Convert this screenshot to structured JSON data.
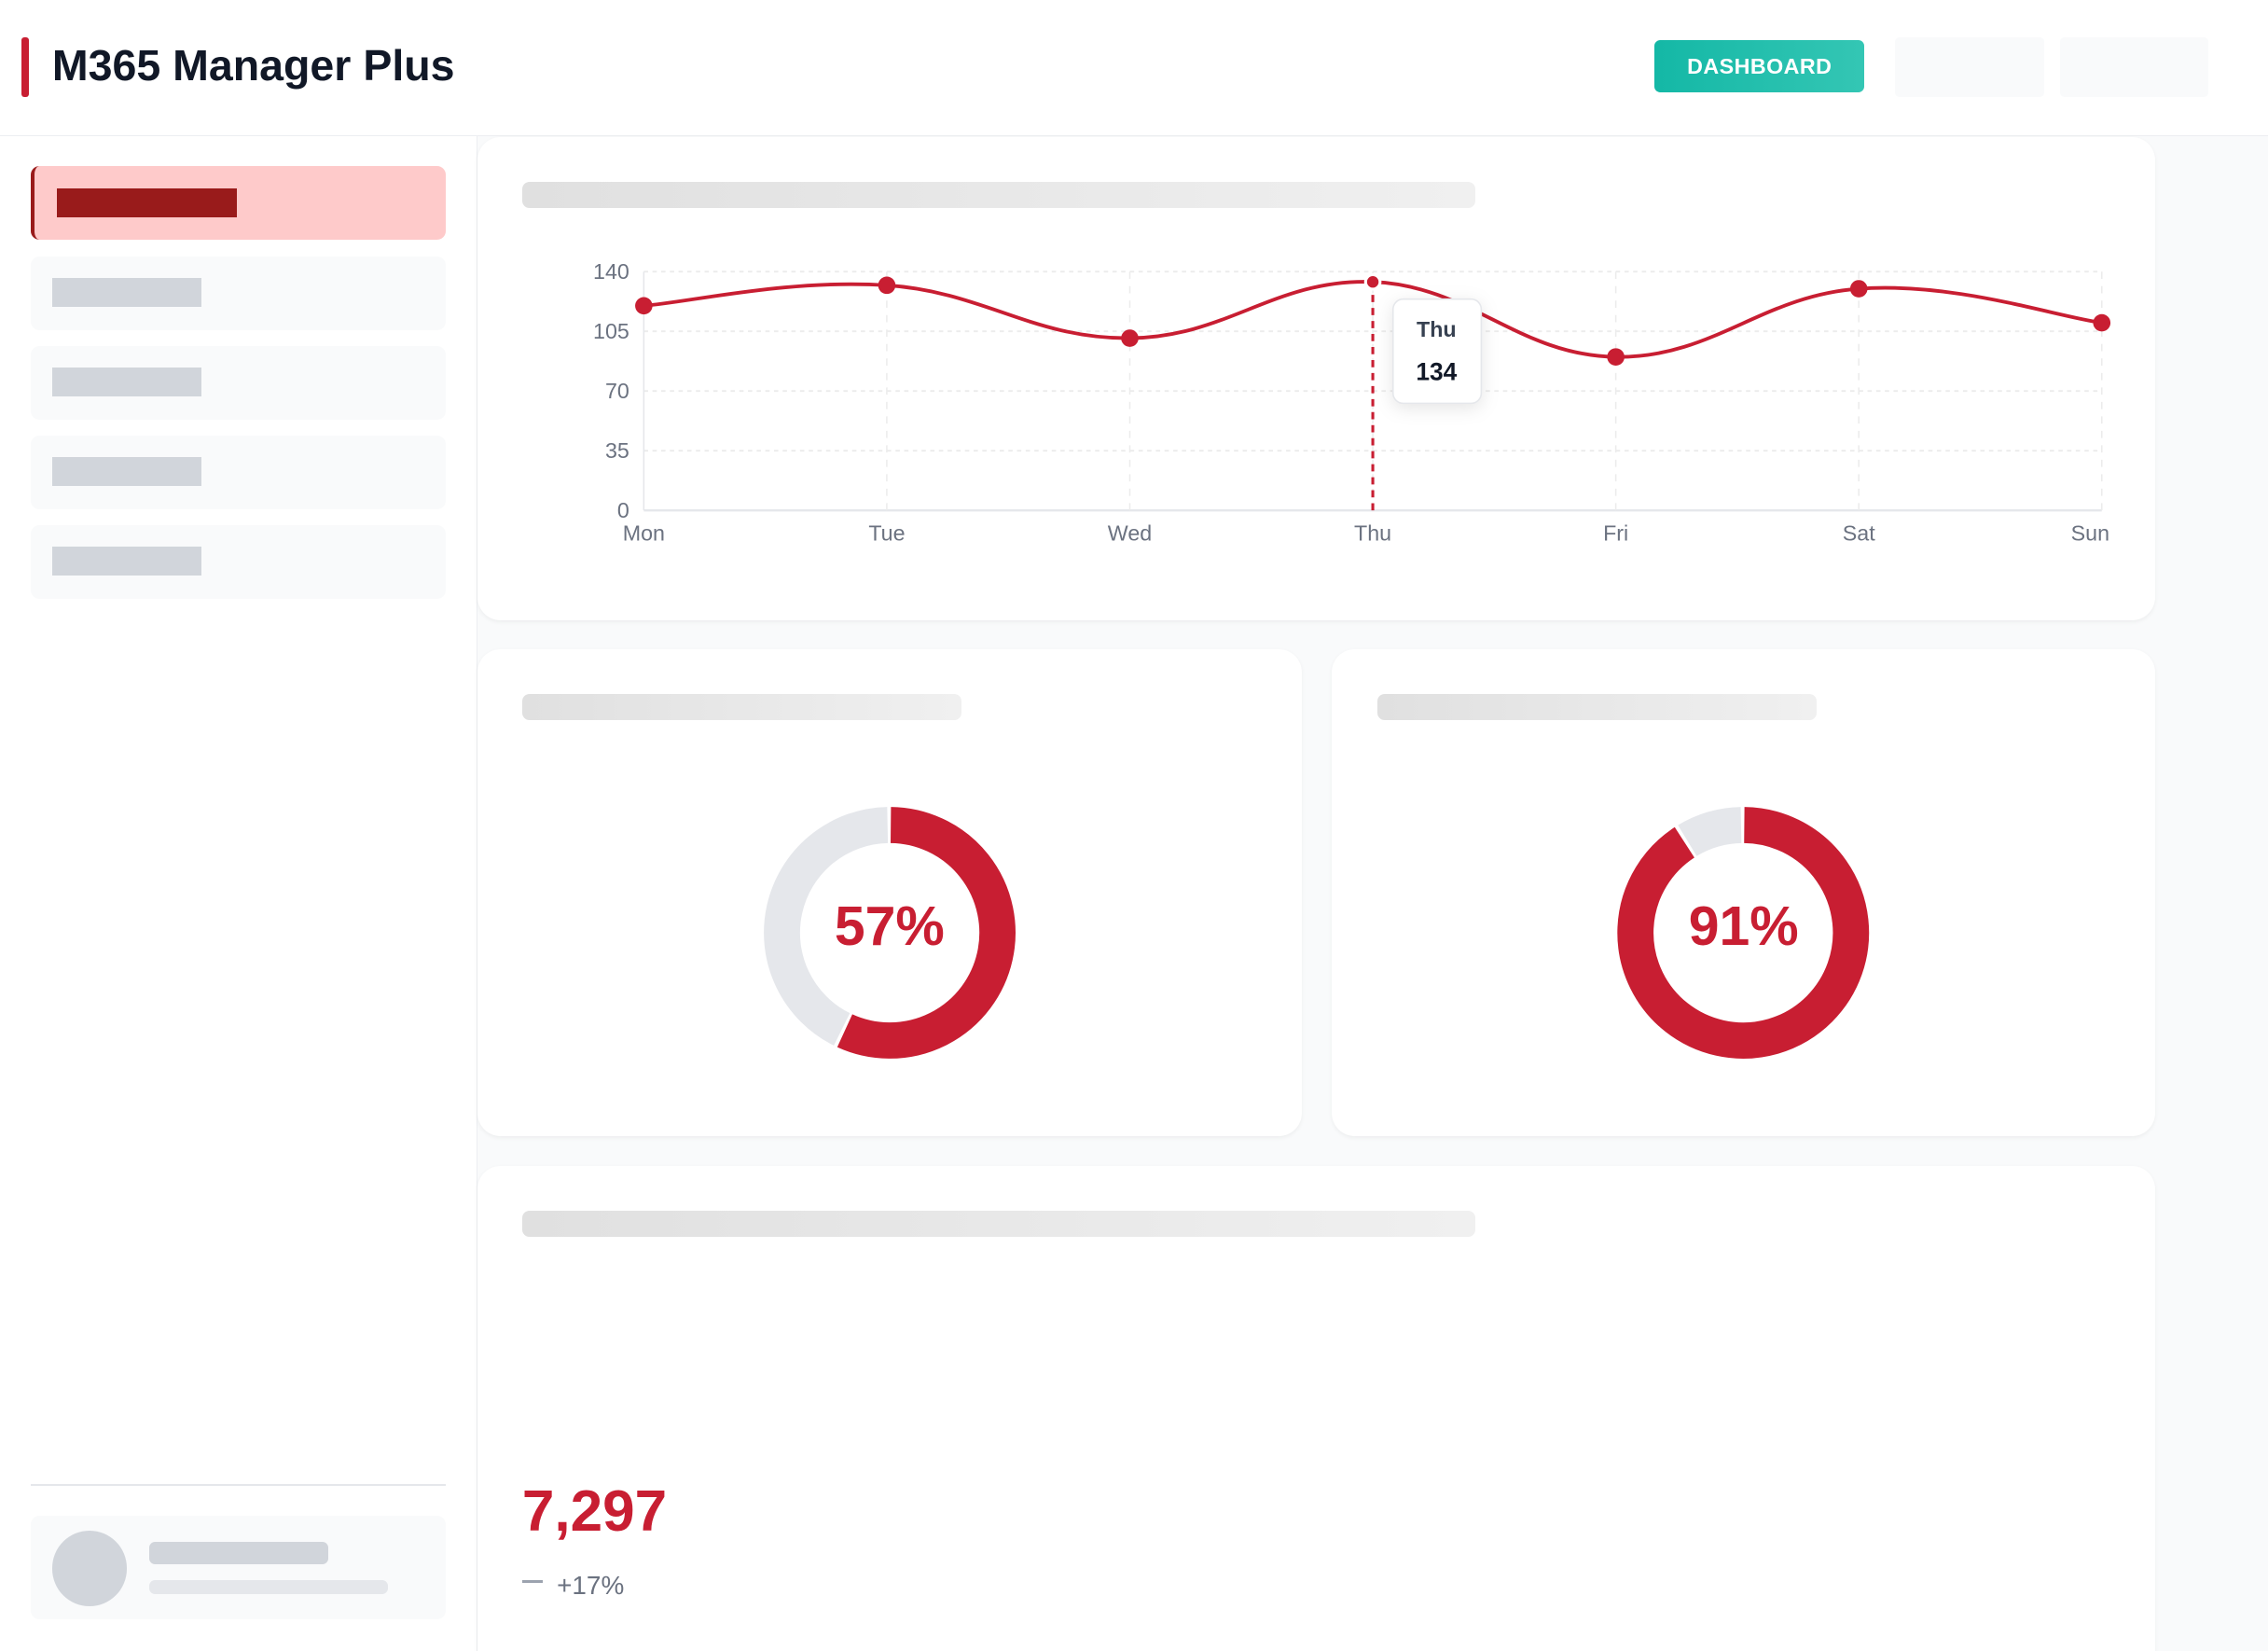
{
  "header": {
    "title": "M365 Manager Plus",
    "dashboard_label": "DASHBOARD"
  },
  "colors": {
    "accent": "#c81e32",
    "teal": "#14b8a6",
    "track": "#e5e7eb"
  },
  "chart_data": {
    "type": "line",
    "categories": [
      "Mon",
      "Tue",
      "Wed",
      "Thu",
      "Fri",
      "Sat",
      "Sun"
    ],
    "series": [
      {
        "name": "",
        "values": [
          120,
          132,
          101,
          134,
          90,
          130,
          110
        ]
      }
    ],
    "yticks": [
      "0",
      "35",
      "70",
      "105",
      "140"
    ],
    "ylim": [
      0,
      140
    ],
    "grid": true,
    "tooltip": {
      "label": "Thu",
      "value": "134"
    }
  },
  "donuts": [
    {
      "value": 57,
      "label": "57%"
    },
    {
      "value": 91,
      "label": "91%"
    }
  ],
  "stat": {
    "value": "7,297",
    "change": "+17%"
  }
}
